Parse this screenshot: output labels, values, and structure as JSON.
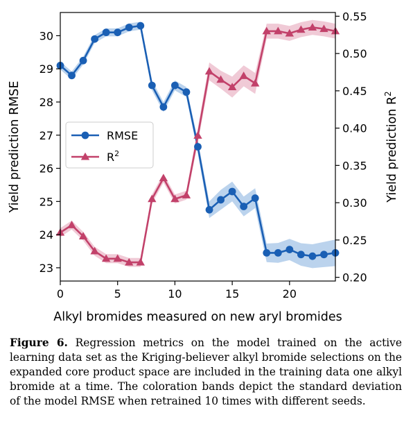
{
  "chart_data": {
    "type": "line",
    "xlabel": "Alkyl bromides measured on new aryl bromides",
    "ylabel_left": "Yield prediction RMSE",
    "ylabel_right": "Yield prediction R",
    "ylabel_right_sup": "2",
    "xlim": [
      0,
      24
    ],
    "ylim_left": [
      22.6,
      30.7
    ],
    "ylim_right": [
      0.195,
      0.555
    ],
    "x_ticks": [
      0,
      5,
      10,
      15,
      20
    ],
    "y_left_ticks": [
      23,
      24,
      25,
      26,
      27,
      28,
      29,
      30
    ],
    "y_right_ticks": [
      "0.20",
      "0.25",
      "0.30",
      "0.35",
      "0.40",
      "0.45",
      "0.50",
      "0.55"
    ],
    "legend_position": "center-left",
    "x": [
      0,
      1,
      2,
      3,
      4,
      5,
      6,
      7,
      8,
      9,
      10,
      11,
      12,
      13,
      14,
      15,
      16,
      17,
      18,
      19,
      20,
      21,
      22,
      23,
      24
    ],
    "series": [
      {
        "name": "RMSE",
        "sup": "",
        "axis": "left",
        "marker": "circle",
        "color": "#1a5fb4",
        "band_color": "#9ec1e6",
        "values": [
          29.1,
          28.8,
          29.25,
          29.9,
          30.1,
          30.1,
          30.25,
          30.3,
          28.5,
          27.85,
          28.5,
          28.3,
          26.65,
          24.75,
          25.05,
          25.3,
          24.85,
          25.1,
          23.45,
          23.45,
          23.55,
          23.4,
          23.35,
          23.4,
          23.45
        ],
        "band": [
          0.12,
          0.12,
          0.12,
          0.12,
          0.12,
          0.12,
          0.12,
          0.12,
          0.15,
          0.15,
          0.15,
          0.15,
          0.2,
          0.25,
          0.3,
          0.3,
          0.3,
          0.3,
          0.28,
          0.3,
          0.32,
          0.34,
          0.36,
          0.38,
          0.4
        ]
      },
      {
        "name": "R",
        "sup": "2",
        "axis": "right",
        "marker": "triangle",
        "color": "#c2416a",
        "band_color": "#eab3c4",
        "values": [
          0.26,
          0.27,
          0.255,
          0.235,
          0.225,
          0.225,
          0.22,
          0.22,
          0.305,
          0.333,
          0.305,
          0.31,
          0.39,
          0.476,
          0.465,
          0.455,
          0.47,
          0.46,
          0.53,
          0.53,
          0.527,
          0.532,
          0.535,
          0.533,
          0.53
        ],
        "band": [
          0.006,
          0.006,
          0.006,
          0.006,
          0.006,
          0.006,
          0.006,
          0.006,
          0.006,
          0.006,
          0.006,
          0.006,
          0.01,
          0.012,
          0.012,
          0.014,
          0.014,
          0.014,
          0.01,
          0.01,
          0.01,
          0.01,
          0.01,
          0.01,
          0.01
        ]
      }
    ]
  },
  "caption": {
    "label": "Figure 6.",
    "text": "Regression metrics on the model trained on the active learning data set as the Kriging-believer alkyl bromide selections on the expanded core product space are included in the training data one alkyl bromide at a time. The coloration bands depict the standard deviation of the model RMSE when retrained 10 times with different seeds."
  }
}
